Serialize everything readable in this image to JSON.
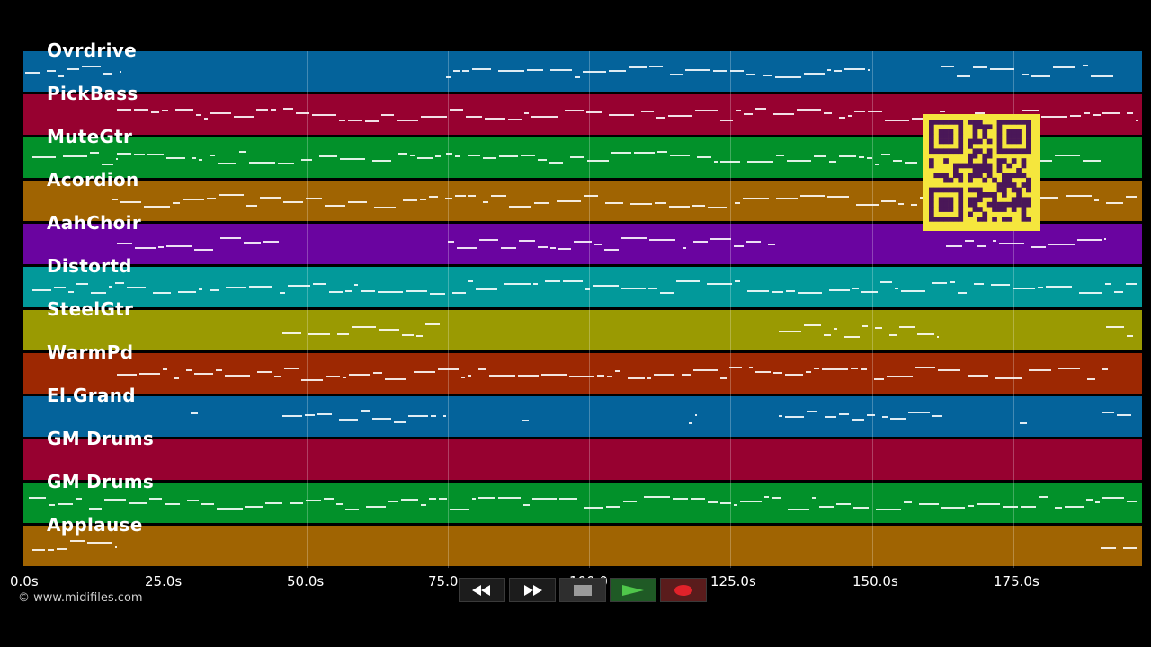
{
  "tracks": [
    {
      "name": "Ovrdrive",
      "color": "#04639b"
    },
    {
      "name": "PickBass",
      "color": "#970130"
    },
    {
      "name": "MuteGtr",
      "color": "#02912a"
    },
    {
      "name": "Acordion",
      "color": "#a06402"
    },
    {
      "name": "AahChoir",
      "color": "#6a04a0"
    },
    {
      "name": "Distortd",
      "color": "#02999a"
    },
    {
      "name": "SteelGtr",
      "color": "#9a9a02"
    },
    {
      "name": "WarmPd",
      "color": "#9d2802"
    },
    {
      "name": "El.Grand",
      "color": "#04639b"
    },
    {
      "name": "GM Drums",
      "color": "#970130"
    },
    {
      "name": "GM Drums",
      "color": "#02912a"
    },
    {
      "name": "Applause",
      "color": "#a06402"
    }
  ],
  "timeline": {
    "ticks": [
      "0.0s",
      "25.0s",
      "50.0s",
      "75.0",
      "100.0",
      "125.0s",
      "150.0s",
      "175.0s"
    ],
    "tick_values_s": [
      0,
      25,
      50,
      75,
      100,
      125,
      150,
      175
    ],
    "end_s": 197
  },
  "copyright": "© www.midifiles.com",
  "transport": {
    "rewind": "rewind-icon",
    "fast_forward": "fast-forward-icon",
    "stop": "stop-icon",
    "play": "play-icon",
    "record": "record-icon"
  },
  "qr_code": "qr-code"
}
